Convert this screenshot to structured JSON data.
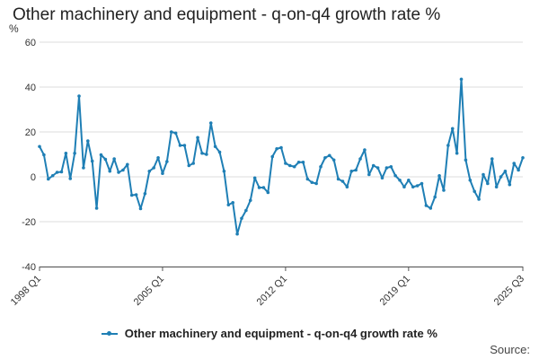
{
  "colors": {
    "series": "#1f7fb5",
    "grid": "#dddddd",
    "axis": "#555555",
    "text": "#333333"
  },
  "source_label": "Source:",
  "chart_data": {
    "type": "line",
    "title": "Other machinery and equipment - q-on-q4 growth rate %",
    "ylabel": "%",
    "xlabel": "",
    "ylim": [
      -40,
      60
    ],
    "yticks": [
      60,
      40,
      20,
      0,
      -20,
      -40
    ],
    "grid": true,
    "legend_position": "bottom",
    "xtick_labels": [
      {
        "label": "1998 Q1",
        "index": 0
      },
      {
        "label": "2005 Q1",
        "index": 28
      },
      {
        "label": "2012 Q1",
        "index": 56
      },
      {
        "label": "2019 Q1",
        "index": 84
      },
      {
        "label": "2025 Q3",
        "index": 110
      }
    ],
    "series": [
      {
        "name": "Other machinery and equipment - q-on-q4 growth rate %",
        "start": "1998 Q1",
        "end": "2025 Q3",
        "values": [
          13.5,
          9.8,
          -1.0,
          0.5,
          2.0,
          2.2,
          10.5,
          -0.8,
          10.5,
          36.0,
          4.0,
          16.0,
          7.0,
          -14.0,
          9.8,
          7.8,
          2.5,
          8.0,
          2.0,
          3.0,
          5.5,
          -8.2,
          -8.0,
          -14.2,
          -7.5,
          2.5,
          4.0,
          8.5,
          1.5,
          6.8,
          20.0,
          19.5,
          14.0,
          14.0,
          5.0,
          6.0,
          17.5,
          10.5,
          10.0,
          24.0,
          13.5,
          11.0,
          2.5,
          -12.5,
          -11.5,
          -25.5,
          -18.5,
          -15.0,
          -10.5,
          -0.5,
          -4.8,
          -4.8,
          -7.0,
          9.0,
          12.5,
          13.0,
          6.0,
          5.0,
          4.5,
          6.5,
          6.5,
          -1.0,
          -2.5,
          -3.0,
          4.5,
          8.5,
          9.5,
          7.5,
          -1.0,
          -2.0,
          -4.5,
          2.5,
          3.0,
          8.0,
          12.0,
          1.0,
          5.0,
          4.0,
          -0.5,
          4.0,
          4.5,
          0.5,
          -1.5,
          -4.5,
          -1.5,
          -4.5,
          -4.0,
          -3.0,
          -12.8,
          -14.0,
          -9.0,
          0.5,
          -6.0,
          14.0,
          21.5,
          10.5,
          43.5,
          7.5,
          -1.5,
          -6.5,
          -10.0,
          1.0,
          -3.0,
          8.0,
          -4.5,
          0.0,
          2.5,
          -3.5,
          6.0,
          3.0,
          8.5
        ]
      }
    ]
  }
}
